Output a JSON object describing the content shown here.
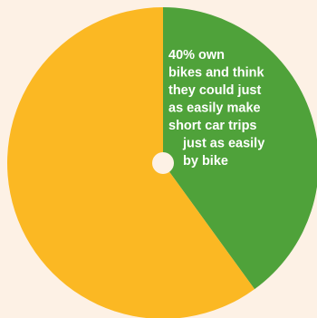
{
  "chart_data": {
    "type": "pie",
    "slices": [
      {
        "label_lines": [
          "40% own",
          "bikes and think",
          "they could just",
          "as easily make",
          "short car trips",
          "just as easily",
          "by bike"
        ],
        "value": 40,
        "color": "#4fa23a"
      },
      {
        "label_lines": [],
        "value": 60,
        "color": "#fbb823"
      }
    ],
    "start": "12 o'clock",
    "direction": "clockwise",
    "center_hole_color": "#fdf1e5",
    "legend": "none"
  }
}
